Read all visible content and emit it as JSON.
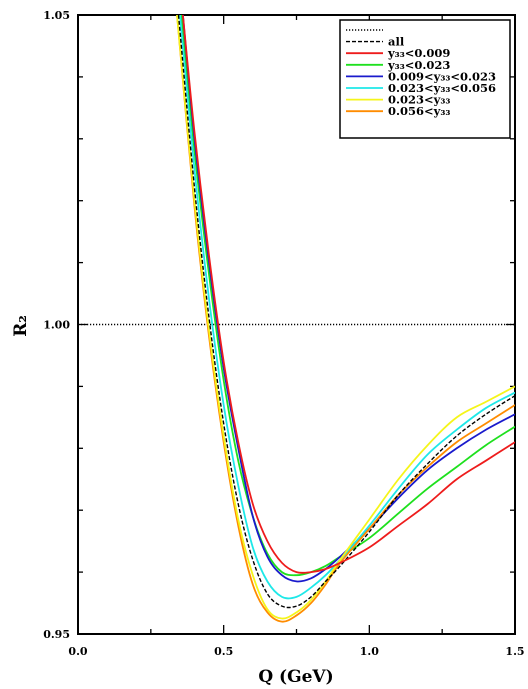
{
  "chart_data": {
    "type": "line",
    "xlabel": "Q (GeV)",
    "ylabel": "R₂",
    "xlim": [
      0.0,
      1.5
    ],
    "ylim": [
      0.95,
      1.05
    ],
    "xticks": [
      "0.0",
      "0.5",
      "1.0",
      "1.5"
    ],
    "yticks": [
      "0.95",
      "1.00",
      "1.05"
    ],
    "reference_line": {
      "y": 1.0,
      "style": "dotted",
      "color": "#000000"
    },
    "legend_position": "top-right",
    "legend": [
      {
        "label": "",
        "color": "#000000",
        "style": "dotted"
      },
      {
        "label": "all",
        "color": "#000000",
        "style": "dashed"
      },
      {
        "label": "y₃₃<0.009",
        "color": "#ee1c1c",
        "style": "solid"
      },
      {
        "label": "y₃₃<0.023",
        "color": "#1ee01e",
        "style": "solid"
      },
      {
        "label": "0.009<y₃₃<0.023",
        "color": "#1a1acc",
        "style": "solid"
      },
      {
        "label": "0.023<y₃₃<0.056",
        "color": "#1ee8e8",
        "style": "solid"
      },
      {
        "label": "0.023<y₃₃",
        "color": "#f5f51a",
        "style": "solid"
      },
      {
        "label": "0.056<y₃₃",
        "color": "#ff8c00",
        "style": "solid"
      }
    ],
    "series": [
      {
        "name": "all",
        "color": "#000000",
        "style": "dashed",
        "x": [
          0.345,
          0.4,
          0.45,
          0.5,
          0.55,
          0.6,
          0.65,
          0.7,
          0.75,
          0.8,
          0.85,
          0.9,
          1.0,
          1.1,
          1.2,
          1.3,
          1.4,
          1.5
        ],
        "y": [
          1.05,
          1.022,
          1.001,
          0.984,
          0.971,
          0.962,
          0.9565,
          0.9545,
          0.9545,
          0.956,
          0.9585,
          0.961,
          0.9665,
          0.9725,
          0.9775,
          0.982,
          0.9855,
          0.9885
        ]
      },
      {
        "name": "y₃₃<0.009",
        "color": "#ee1c1c",
        "style": "solid",
        "x": [
          0.36,
          0.4,
          0.45,
          0.5,
          0.55,
          0.6,
          0.65,
          0.7,
          0.75,
          0.8,
          0.85,
          0.9,
          1.0,
          1.1,
          1.2,
          1.3,
          1.4,
          1.5
        ],
        "y": [
          1.05,
          1.031,
          1.011,
          0.994,
          0.981,
          0.971,
          0.965,
          0.9615,
          0.96,
          0.96,
          0.9605,
          0.9615,
          0.964,
          0.9675,
          0.971,
          0.975,
          0.978,
          0.981
        ]
      },
      {
        "name": "y₃₃<0.023",
        "color": "#1ee01e",
        "style": "solid",
        "x": [
          0.355,
          0.4,
          0.45,
          0.5,
          0.55,
          0.6,
          0.65,
          0.7,
          0.75,
          0.8,
          0.85,
          0.9,
          1.0,
          1.1,
          1.2,
          1.3,
          1.4,
          1.5
        ],
        "y": [
          1.05,
          1.028,
          1.008,
          0.991,
          0.978,
          0.969,
          0.963,
          0.96,
          0.9595,
          0.96,
          0.961,
          0.9625,
          0.9655,
          0.9695,
          0.9735,
          0.977,
          0.9805,
          0.9835
        ]
      },
      {
        "name": "0.009<y₃₃<0.023",
        "color": "#1a1acc",
        "style": "solid",
        "x": [
          0.36,
          0.4,
          0.45,
          0.5,
          0.55,
          0.6,
          0.65,
          0.7,
          0.75,
          0.8,
          0.85,
          0.9,
          1.0,
          1.1,
          1.2,
          1.3,
          1.4,
          1.5
        ],
        "y": [
          1.05,
          1.03,
          1.01,
          0.993,
          0.98,
          0.969,
          0.9625,
          0.9595,
          0.9585,
          0.959,
          0.9605,
          0.9625,
          0.967,
          0.972,
          0.9765,
          0.98,
          0.983,
          0.9855
        ]
      },
      {
        "name": "0.023<y₃₃<0.056",
        "color": "#1ee8e8",
        "style": "solid",
        "x": [
          0.35,
          0.4,
          0.45,
          0.5,
          0.55,
          0.6,
          0.65,
          0.7,
          0.75,
          0.8,
          0.85,
          0.9,
          1.0,
          1.1,
          1.2,
          1.3,
          1.4,
          1.5
        ],
        "y": [
          1.05,
          1.025,
          1.004,
          0.987,
          0.974,
          0.964,
          0.9585,
          0.956,
          0.956,
          0.9575,
          0.9595,
          0.962,
          0.9675,
          0.9735,
          0.979,
          0.983,
          0.9865,
          0.989
        ]
      },
      {
        "name": "0.023<y₃₃",
        "color": "#f5f51a",
        "style": "solid",
        "x": [
          0.34,
          0.4,
          0.45,
          0.5,
          0.55,
          0.6,
          0.65,
          0.7,
          0.75,
          0.8,
          0.85,
          0.9,
          1.0,
          1.1,
          1.2,
          1.3,
          1.4,
          1.5
        ],
        "y": [
          1.05,
          1.02,
          0.999,
          0.982,
          0.9685,
          0.9595,
          0.954,
          0.9525,
          0.9535,
          0.9555,
          0.9585,
          0.962,
          0.9685,
          0.975,
          0.9805,
          0.985,
          0.9875,
          0.99
        ]
      },
      {
        "name": "0.056<y₃₃",
        "color": "#ff8c00",
        "style": "solid",
        "x": [
          0.34,
          0.4,
          0.45,
          0.5,
          0.55,
          0.6,
          0.65,
          0.7,
          0.75,
          0.8,
          0.85,
          0.9,
          1.0,
          1.1,
          1.2,
          1.3,
          1.4,
          1.5
        ],
        "y": [
          1.05,
          1.019,
          0.998,
          0.981,
          0.9675,
          0.958,
          0.9535,
          0.952,
          0.953,
          0.955,
          0.958,
          0.9615,
          0.967,
          0.9725,
          0.977,
          0.981,
          0.984,
          0.987
        ]
      }
    ]
  }
}
